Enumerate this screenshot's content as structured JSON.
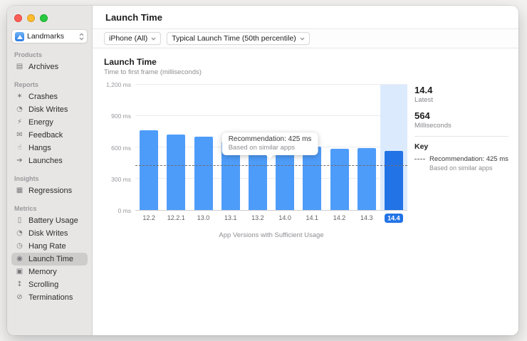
{
  "sidebar": {
    "project_selector": {
      "label": "Landmarks"
    },
    "sections": [
      {
        "title": "Products",
        "items": [
          {
            "label": "Archives",
            "icon_glyph": "▤",
            "icon_name": "archive-box-icon",
            "selected": false
          }
        ]
      },
      {
        "title": "Reports",
        "items": [
          {
            "label": "Crashes",
            "icon_glyph": "✶",
            "icon_name": "crash-burst-icon",
            "selected": false
          },
          {
            "label": "Disk Writes",
            "icon_glyph": "◔",
            "icon_name": "disk-icon",
            "selected": false
          },
          {
            "label": "Energy",
            "icon_glyph": "⚡",
            "icon_name": "energy-bolt-icon",
            "selected": false
          },
          {
            "label": "Feedback",
            "icon_glyph": "✉",
            "icon_name": "feedback-bubble-icon",
            "selected": false
          },
          {
            "label": "Hangs",
            "icon_glyph": "☝",
            "icon_name": "hand-icon",
            "selected": false
          },
          {
            "label": "Launches",
            "icon_glyph": "➔",
            "icon_name": "launch-arrow-icon",
            "selected": false
          }
        ]
      },
      {
        "title": "Insights",
        "items": [
          {
            "label": "Regressions",
            "icon_glyph": "▦",
            "icon_name": "bar-chart-icon",
            "selected": false
          }
        ]
      },
      {
        "title": "Metrics",
        "items": [
          {
            "label": "Battery Usage",
            "icon_glyph": "▯",
            "icon_name": "battery-icon",
            "selected": false
          },
          {
            "label": "Disk Writes",
            "icon_glyph": "◔",
            "icon_name": "disk-icon",
            "selected": false
          },
          {
            "label": "Hang Rate",
            "icon_glyph": "◷",
            "icon_name": "clock-icon",
            "selected": false
          },
          {
            "label": "Launch Time",
            "icon_glyph": "◉",
            "icon_name": "stopwatch-icon",
            "selected": true
          },
          {
            "label": "Memory",
            "icon_glyph": "▣",
            "icon_name": "memory-chip-icon",
            "selected": false
          },
          {
            "label": "Scrolling",
            "icon_glyph": "↕",
            "icon_name": "scroll-icon",
            "selected": false
          },
          {
            "label": "Terminations",
            "icon_glyph": "⊘",
            "icon_name": "termination-icon",
            "selected": false
          }
        ]
      }
    ]
  },
  "header": {
    "title": "Launch Time"
  },
  "filters": {
    "device": "iPhone (All)",
    "metric": "Typical Launch Time (50th percentile)"
  },
  "chart_data": {
    "type": "bar",
    "title": "Launch Time",
    "subtitle": "Time to first frame (milliseconds)",
    "xlabel": "App Versions with Sufficient Usage",
    "ylabel": "milliseconds",
    "categories": [
      "12.2",
      "12.2.1",
      "13.0",
      "13.1",
      "13.2",
      "14.0",
      "14.1",
      "14.2",
      "14.3",
      "14.4"
    ],
    "values": [
      765,
      720,
      705,
      655,
      625,
      620,
      610,
      585,
      595,
      564
    ],
    "selected_index": 9,
    "ylim": [
      0,
      1200
    ],
    "yticks": [
      {
        "value": 1200,
        "label": "1,200 ms"
      },
      {
        "value": 900,
        "label": "900 ms"
      },
      {
        "value": 600,
        "label": "600 ms"
      },
      {
        "value": 300,
        "label": "300 ms"
      },
      {
        "value": 0,
        "label": "0 ms"
      }
    ],
    "grid": true,
    "recommendation": {
      "value": 425
    },
    "colors": {
      "bar": "#4E9CF9",
      "selected_bar": "#2273E6",
      "selected_column": "#DCEAFD",
      "recommendation_line": "#6E6E73"
    }
  },
  "tooltip": {
    "title": "Recommendation: 425 ms",
    "subtitle": "Based on similar apps"
  },
  "stats": {
    "latest_value": "14.4",
    "latest_label": "Latest",
    "ms_value": "564",
    "ms_label": "Milliseconds",
    "key_title": "Key",
    "key_line1": "Recommendation: 425 ms",
    "key_line2": "Based on similar apps"
  }
}
